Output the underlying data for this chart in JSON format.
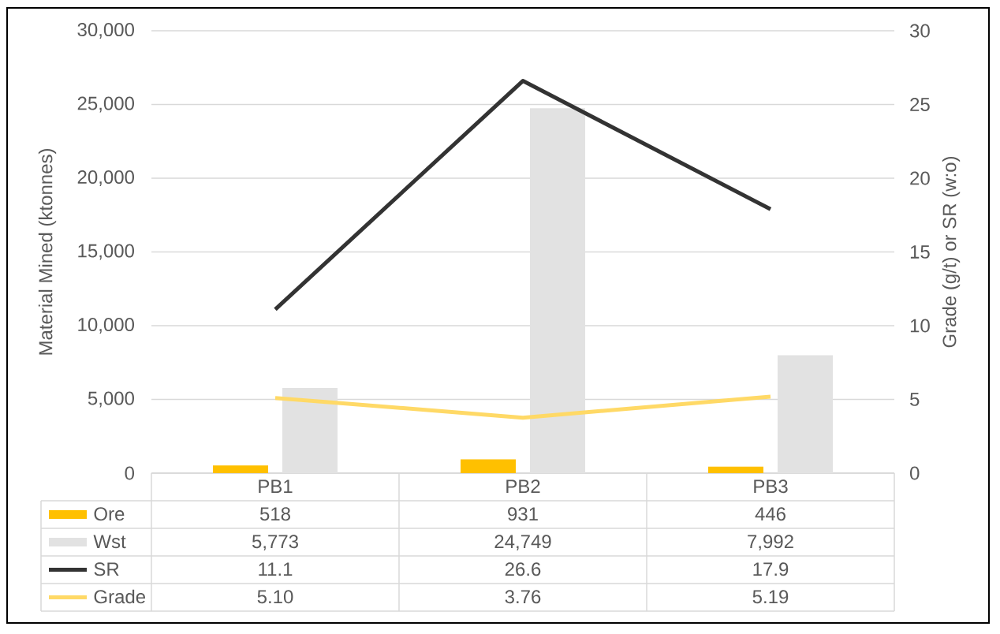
{
  "chart_data": {
    "type": "bar",
    "categories": [
      "PB1",
      "PB2",
      "PB3"
    ],
    "series": [
      {
        "name": "Ore",
        "color": "#ffc000",
        "values": [
          518,
          931,
          446
        ],
        "value_labels": [
          "518",
          "931",
          "446"
        ]
      },
      {
        "name": "Wst",
        "color": "#e2e2e2",
        "values": [
          5773,
          24749,
          7992
        ],
        "value_labels": [
          "5,773",
          "24,749",
          "7,992"
        ]
      },
      {
        "name": "SR",
        "type": "line",
        "axis": "y2",
        "color": "#333333",
        "values": [
          11.1,
          26.6,
          17.9
        ],
        "value_labels": [
          "11.1",
          "26.6",
          "17.9"
        ]
      },
      {
        "name": "Grade",
        "type": "line",
        "axis": "y2",
        "color": "#ffd966",
        "values": [
          5.1,
          3.76,
          5.19
        ],
        "value_labels": [
          "5.10",
          "3.76",
          "5.19"
        ]
      }
    ],
    "ylabel": "Material Mined (ktonnes)",
    "y2label": "Grade (g/t) or SR (w:o)",
    "ylim": [
      0,
      30000
    ],
    "yticks": [
      0,
      {
        "value": 5000,
        "label": "5,000"
      },
      {
        "value": 10000,
        "label": "10,000"
      },
      {
        "value": 15000,
        "label": "15,000"
      },
      {
        "value": 20000,
        "label": "20,000"
      },
      {
        "value": 25000,
        "label": "25,000"
      },
      {
        "value": 30000,
        "label": "30,000"
      }
    ],
    "y2lim": [
      0,
      30
    ],
    "y2ticks": [
      0,
      5,
      10,
      15,
      20,
      25,
      30
    ],
    "grid": "y",
    "legend": "bottom"
  }
}
